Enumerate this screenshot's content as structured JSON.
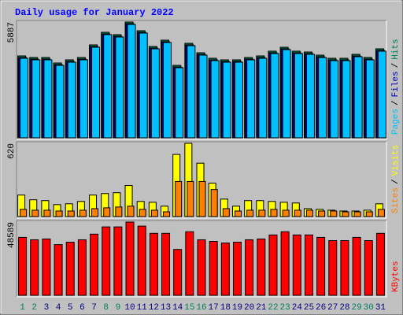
{
  "chart_data": [
    {
      "type": "bar",
      "title": "Daily usage for January 2022",
      "ylim": [
        0,
        5887
      ],
      "yticks": [
        5887
      ],
      "legend_separator": "/",
      "series": [
        {
          "name": "Hits",
          "color": "#00805c",
          "values": [
            4165,
            4085,
            4085,
            3805,
            3965,
            4085,
            4726,
            5367,
            5247,
            5887,
            5447,
            4646,
            4966,
            3685,
            4806,
            4325,
            4045,
            3965,
            3965,
            4085,
            4165,
            4406,
            4606,
            4406,
            4365,
            4205,
            4045,
            4045,
            4245,
            4085,
            4526
          ]
        },
        {
          "name": "Files",
          "color": "#0000c0",
          "values": [
            4085,
            4005,
            4005,
            3725,
            3885,
            4005,
            4646,
            5287,
            5167,
            5807,
            5367,
            4566,
            4886,
            3605,
            4726,
            4245,
            3965,
            3885,
            3885,
            4005,
            4085,
            4326,
            4526,
            4326,
            4285,
            4125,
            3965,
            3965,
            4165,
            4005,
            4446
          ]
        },
        {
          "name": "Pages",
          "color": "#00c0ff",
          "values": [
            4045,
            3965,
            3965,
            3685,
            3845,
            3965,
            4606,
            5247,
            5127,
            5767,
            5327,
            4526,
            4846,
            3565,
            4686,
            4205,
            3925,
            3845,
            3845,
            3965,
            4045,
            4286,
            4486,
            4286,
            4245,
            4085,
            3925,
            3925,
            4125,
            3965,
            4406
          ]
        }
      ]
    },
    {
      "type": "bar",
      "ylim": [
        0,
        620
      ],
      "yticks": [
        620
      ],
      "legend_separator": "/",
      "series": [
        {
          "name": "Visits",
          "color": "#ffff00",
          "values": [
            182,
            142,
            135,
            101,
            108,
            128,
            182,
            195,
            202,
            263,
            128,
            121,
            88,
            526,
            620,
            452,
            283,
            148,
            88,
            135,
            135,
            128,
            121,
            115,
            67,
            61,
            54,
            47,
            47,
            54,
            108
          ]
        },
        {
          "name": "Sites",
          "color": "#ff8000",
          "values": [
            61,
            54,
            54,
            47,
            47,
            54,
            67,
            74,
            81,
            88,
            61,
            54,
            40,
            297,
            297,
            297,
            229,
            67,
            47,
            54,
            54,
            61,
            54,
            54,
            54,
            47,
            47,
            40,
            40,
            40,
            61
          ]
        }
      ]
    },
    {
      "type": "bar",
      "ylim": [
        0,
        48589
      ],
      "yticks": [
        48589
      ],
      "categories": [
        "1",
        "2",
        "3",
        "4",
        "5",
        "6",
        "7",
        "8",
        "9",
        "10",
        "11",
        "12",
        "13",
        "14",
        "15",
        "16",
        "17",
        "18",
        "19",
        "20",
        "21",
        "22",
        "23",
        "24",
        "25",
        "26",
        "27",
        "28",
        "29",
        "30",
        "31"
      ],
      "category_colors": [
        "#00805c",
        "#00805c",
        "#000080",
        "#000080",
        "#000080",
        "#000080",
        "#000080",
        "#00805c",
        "#00805c",
        "#000080",
        "#000080",
        "#000080",
        "#000080",
        "#000080",
        "#00805c",
        "#00805c",
        "#000080",
        "#000080",
        "#000080",
        "#000080",
        "#000080",
        "#00805c",
        "#00805c",
        "#000080",
        "#000080",
        "#000080",
        "#000080",
        "#000080",
        "#00805c",
        "#00805c",
        "#000080"
      ],
      "series": [
        {
          "name": "KBytes",
          "color": "#ff0000",
          "values": [
            38448,
            36846,
            37377,
            33639,
            35242,
            36846,
            40582,
            45387,
            45387,
            48589,
            45920,
            41115,
            41115,
            30436,
            42183,
            36846,
            35775,
            34707,
            35242,
            36846,
            37377,
            40047,
            42183,
            40047,
            40047,
            38448,
            36310,
            36310,
            38448,
            36310,
            41115
          ]
        }
      ]
    }
  ]
}
